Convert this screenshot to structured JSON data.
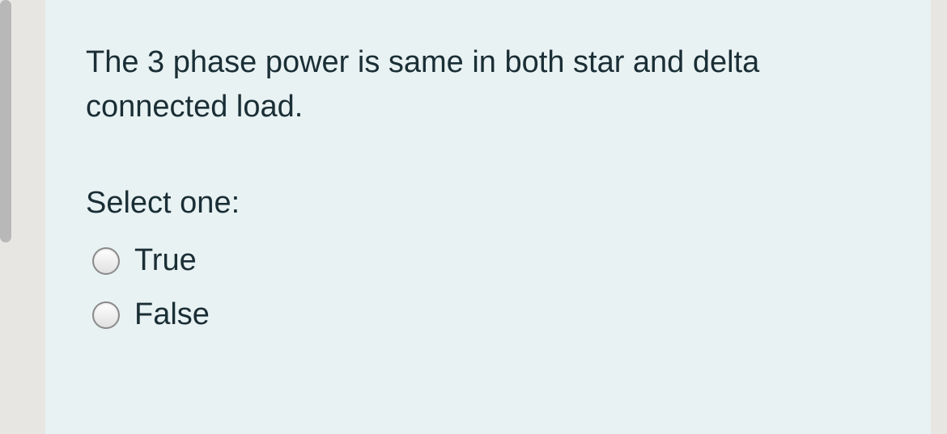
{
  "question": {
    "text": "The 3 phase power is same in both star and delta connected load.",
    "select_prompt": "Select one:",
    "options": [
      {
        "label": "True",
        "selected": false
      },
      {
        "label": "False",
        "selected": false
      }
    ]
  },
  "colors": {
    "page_background": "#e8e6e3",
    "card_background": "#e9f2f3",
    "text_color": "#1a2e35",
    "accent_bar": "#b8b8b8",
    "radio_border": "#8a8a8a"
  }
}
